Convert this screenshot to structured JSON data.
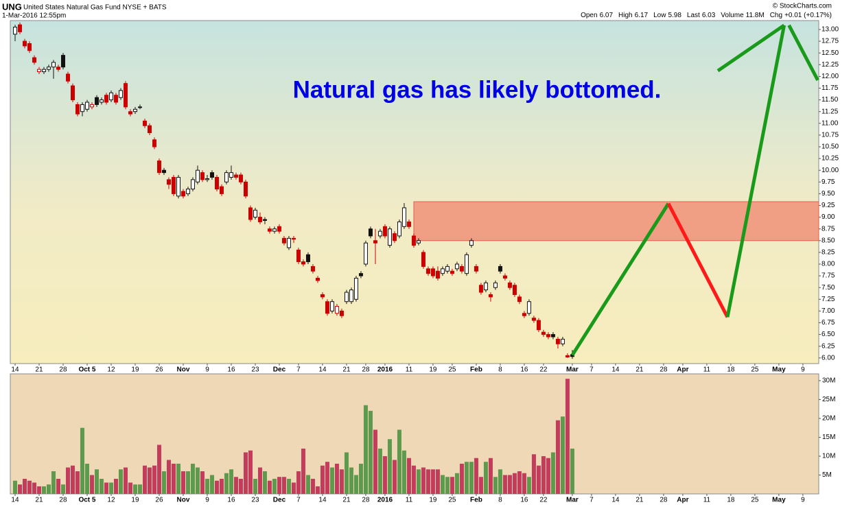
{
  "chart_data": {
    "type": "candlestick",
    "symbol": "UNG",
    "name": "United States Natural Gas Fund NYSE + BATS",
    "timestamp": "1-Mar-2016 12:55pm",
    "source": "© StockCharts.com",
    "quote": [
      {
        "label": "Open",
        "value": "6.07"
      },
      {
        "label": "High",
        "value": "6.17"
      },
      {
        "label": "Low",
        "value": "5.98"
      },
      {
        "label": "Last",
        "value": "6.03"
      },
      {
        "label": "Volume",
        "value": "11.8M"
      },
      {
        "label": "Chg",
        "value": "+0.01 (+0.17%)"
      }
    ],
    "annotation": "Natural gas has likely bottomed.",
    "annotation_color": "#0000e6",
    "up_color": "#111111",
    "down_color": "#cc0000",
    "xlim": [
      -1,
      167.3
    ],
    "xticks": [
      {
        "value": 0,
        "label": "14"
      },
      {
        "value": 5,
        "label": "21"
      },
      {
        "value": 10,
        "label": "28"
      },
      {
        "value": 15,
        "label": "Oct 5"
      },
      {
        "value": 20,
        "label": "12"
      },
      {
        "value": 25,
        "label": "19"
      },
      {
        "value": 30,
        "label": "26"
      },
      {
        "value": 35,
        "label": "Nov"
      },
      {
        "value": 40,
        "label": "9"
      },
      {
        "value": 45,
        "label": "16"
      },
      {
        "value": 50,
        "label": "23"
      },
      {
        "value": 55,
        "label": "Dec"
      },
      {
        "value": 59,
        "label": "7"
      },
      {
        "value": 64,
        "label": "14"
      },
      {
        "value": 69,
        "label": "21"
      },
      {
        "value": 73,
        "label": "28"
      },
      {
        "value": 77,
        "label": "2016"
      },
      {
        "value": 82,
        "label": "11"
      },
      {
        "value": 87,
        "label": "19"
      },
      {
        "value": 91,
        "label": "25"
      },
      {
        "value": 96,
        "label": "Feb"
      },
      {
        "value": 101,
        "label": "8"
      },
      {
        "value": 106,
        "label": "16"
      },
      {
        "value": 110,
        "label": "22"
      },
      {
        "value": 116,
        "label": "Mar"
      },
      {
        "value": 120,
        "label": "7"
      },
      {
        "value": 125,
        "label": "14"
      },
      {
        "value": 130,
        "label": "21"
      },
      {
        "value": 135,
        "label": "28"
      },
      {
        "value": 139,
        "label": "Apr"
      },
      {
        "value": 144,
        "label": "11"
      },
      {
        "value": 149,
        "label": "18"
      },
      {
        "value": 154,
        "label": "25"
      },
      {
        "value": 159,
        "label": "May"
      },
      {
        "value": 164,
        "label": "9"
      }
    ],
    "ylim": [
      5.88,
      13.19
    ],
    "yticks": [
      {
        "value": 6,
        "label": "6.00"
      },
      {
        "value": 6.25,
        "label": "6.25"
      },
      {
        "value": 6.5,
        "label": "6.50"
      },
      {
        "value": 6.75,
        "label": "6.75"
      },
      {
        "value": 7,
        "label": "7.00"
      },
      {
        "value": 7.25,
        "label": "7.25"
      },
      {
        "value": 7.5,
        "label": "7.50"
      },
      {
        "value": 7.75,
        "label": "7.75"
      },
      {
        "value": 8,
        "label": "8.00"
      },
      {
        "value": 8.25,
        "label": "8.25"
      },
      {
        "value": 8.5,
        "label": "8.50"
      },
      {
        "value": 8.75,
        "label": "8.75"
      },
      {
        "value": 9,
        "label": "9.00"
      },
      {
        "value": 9.25,
        "label": "9.25"
      },
      {
        "value": 9.5,
        "label": "9.50"
      },
      {
        "value": 9.75,
        "label": "9.75"
      },
      {
        "value": 10,
        "label": "10.00"
      },
      {
        "value": 10.25,
        "label": "10.25"
      },
      {
        "value": 10.5,
        "label": "10.50"
      },
      {
        "value": 10.75,
        "label": "10.75"
      },
      {
        "value": 11,
        "label": "11.00"
      },
      {
        "value": 11.25,
        "label": "11.25"
      },
      {
        "value": 11.5,
        "label": "11.50"
      },
      {
        "value": 11.75,
        "label": "11.75"
      },
      {
        "value": 12,
        "label": "12.00"
      },
      {
        "value": 12.25,
        "label": "12.25"
      },
      {
        "value": 12.5,
        "label": "12.50"
      },
      {
        "value": 12.75,
        "label": "12.75"
      },
      {
        "value": 13,
        "label": "13.00"
      }
    ],
    "open": [
      12.9,
      13.1,
      12.75,
      12.7,
      12.4,
      12.1,
      12.1,
      12.15,
      12.2,
      12.2,
      12.45,
      12.05,
      11.8,
      11.4,
      11.25,
      11.3,
      11.35,
      11.55,
      11.45,
      11.6,
      11.5,
      11.6,
      11.55,
      11.85,
      11.25,
      11.25,
      11.35,
      11.05,
      10.95,
      10.65,
      10.2,
      10.0,
      9.8,
      9.85,
      9.45,
      9.55,
      9.5,
      9.6,
      9.75,
      9.95,
      9.8,
      9.95,
      9.85,
      9.65,
      9.75,
      9.85,
      9.9,
      9.9,
      9.75,
      9.2,
      9.0,
      9.0,
      8.95,
      8.75,
      8.7,
      8.8,
      8.55,
      8.35,
      8.55,
      8.3,
      8.05,
      8.2,
      7.95,
      7.7,
      7.35,
      7.2,
      7.0,
      6.95,
      7.0,
      7.2,
      7.2,
      7.25,
      7.8,
      8.0,
      8.75,
      8.5,
      8.6,
      8.8,
      8.4,
      8.65,
      8.6,
      8.8,
      8.9,
      8.6,
      8.45,
      8.25,
      7.9,
      7.9,
      7.85,
      7.8,
      7.85,
      7.85,
      7.9,
      7.95,
      7.8,
      8.4,
      7.95,
      7.55,
      7.45,
      7.35,
      7.5,
      7.95,
      7.75,
      7.6,
      7.55,
      7.3,
      6.95,
      6.95,
      6.85,
      6.8,
      6.55,
      6.5,
      6.5,
      6.4,
      6.3,
      6.05,
      6.07
    ],
    "high": [
      13.1,
      13.15,
      12.8,
      12.75,
      12.45,
      12.2,
      12.2,
      12.25,
      12.35,
      12.25,
      12.5,
      12.1,
      11.85,
      11.45,
      11.45,
      11.5,
      11.45,
      11.6,
      11.55,
      11.65,
      11.7,
      11.65,
      11.75,
      11.9,
      11.3,
      11.35,
      11.4,
      11.1,
      11.0,
      10.7,
      10.25,
      10.05,
      9.85,
      9.9,
      9.9,
      9.6,
      9.65,
      9.85,
      10.1,
      10.0,
      9.9,
      10.0,
      9.9,
      9.7,
      10.0,
      10.1,
      9.95,
      9.95,
      9.8,
      9.25,
      9.2,
      9.1,
      9.0,
      8.8,
      8.8,
      8.85,
      8.6,
      8.6,
      8.6,
      8.35,
      8.1,
      8.25,
      8.0,
      7.75,
      7.4,
      7.25,
      7.25,
      7.15,
      7.05,
      7.45,
      7.5,
      7.75,
      7.85,
      8.5,
      8.8,
      8.75,
      8.75,
      8.85,
      8.8,
      8.7,
      8.95,
      9.3,
      8.95,
      8.65,
      8.55,
      8.3,
      7.95,
      7.95,
      7.95,
      7.95,
      8.0,
      7.9,
      8.05,
      8.0,
      8.25,
      8.55,
      8.0,
      7.6,
      7.65,
      7.4,
      7.65,
      8.0,
      7.8,
      7.65,
      7.6,
      7.35,
      7.0,
      7.25,
      6.9,
      6.85,
      6.6,
      6.55,
      6.55,
      6.45,
      6.45,
      6.1,
      6.17
    ],
    "low": [
      12.75,
      12.9,
      12.6,
      12.5,
      12.25,
      12.05,
      12.05,
      12.1,
      11.95,
      12.1,
      12.15,
      11.85,
      11.45,
      11.15,
      11.15,
      11.25,
      11.3,
      11.35,
      11.4,
      11.4,
      11.45,
      11.4,
      11.5,
      11.3,
      11.15,
      11.2,
      11.3,
      10.9,
      10.75,
      10.45,
      9.9,
      9.9,
      9.6,
      9.45,
      9.4,
      9.4,
      9.45,
      9.55,
      9.7,
      9.75,
      9.75,
      9.8,
      9.55,
      9.45,
      9.7,
      9.8,
      9.8,
      9.7,
      9.4,
      8.9,
      8.95,
      8.85,
      8.85,
      8.65,
      8.65,
      8.65,
      8.4,
      8.3,
      8.45,
      8.0,
      7.95,
      8.0,
      7.8,
      7.6,
      7.25,
      6.9,
      6.95,
      6.9,
      6.85,
      7.15,
      7.15,
      7.2,
      7.7,
      7.95,
      8.55,
      8.0,
      8.55,
      8.55,
      8.35,
      8.45,
      8.55,
      8.75,
      8.75,
      8.35,
      8.4,
      7.9,
      7.75,
      7.7,
      7.65,
      7.75,
      7.8,
      7.75,
      7.85,
      7.8,
      7.75,
      8.35,
      7.8,
      7.35,
      7.4,
      7.2,
      7.45,
      7.8,
      7.65,
      7.45,
      7.3,
      7.15,
      6.85,
      6.9,
      6.75,
      6.55,
      6.45,
      6.4,
      6.4,
      6.2,
      6.25,
      6.0,
      5.98
    ],
    "close": [
      13.05,
      12.95,
      12.65,
      12.55,
      12.3,
      12.15,
      12.15,
      12.2,
      12.3,
      12.15,
      12.2,
      11.9,
      11.5,
      11.2,
      11.4,
      11.45,
      11.4,
      11.4,
      11.5,
      11.45,
      11.65,
      11.45,
      11.7,
      11.35,
      11.2,
      11.3,
      11.35,
      10.95,
      10.8,
      10.5,
      9.95,
      9.95,
      9.7,
      9.5,
      9.85,
      9.45,
      9.6,
      9.8,
      10.0,
      9.8,
      9.82,
      9.85,
      9.6,
      9.5,
      9.95,
      9.95,
      9.85,
      9.75,
      9.45,
      8.95,
      9.15,
      8.9,
      8.93,
      8.7,
      8.75,
      8.7,
      8.45,
      8.55,
      8.53,
      8.05,
      8.0,
      8.05,
      7.85,
      7.65,
      7.3,
      6.95,
      7.2,
      7.1,
      6.9,
      7.4,
      7.45,
      7.7,
      7.75,
      8.45,
      8.6,
      8.45,
      8.7,
      8.6,
      8.75,
      8.5,
      8.9,
      9.2,
      8.8,
      8.4,
      8.5,
      7.95,
      7.8,
      7.75,
      7.7,
      7.9,
      7.95,
      7.8,
      8.0,
      7.85,
      8.2,
      8.5,
      7.85,
      7.4,
      7.6,
      7.3,
      7.6,
      7.85,
      7.7,
      7.5,
      7.35,
      7.2,
      6.9,
      7.2,
      6.8,
      6.6,
      6.5,
      6.45,
      6.45,
      6.3,
      6.4,
      6.02,
      6.03
    ],
    "zone": {
      "x0": 83,
      "y0": 8.5,
      "y1": 9.33,
      "color": "#f0967c"
    },
    "projections": [
      {
        "color": "#1a9a1a",
        "x": [
          116,
          136
        ],
        "y": [
          6.06,
          9.29
        ]
      },
      {
        "color": "#ff1a1a",
        "x": [
          136,
          148.3
        ],
        "y": [
          9.29,
          6.87
        ]
      },
      {
        "color": "#1a9a1a",
        "x": [
          148.3,
          160.1
        ],
        "y": [
          6.87,
          13.09
        ]
      },
      {
        "color": "#1a9a1a",
        "x": [
          146.3,
          160.1
        ],
        "y": [
          12.12,
          13.09
        ]
      },
      {
        "color": "#1a9a1a",
        "x": [
          161.1,
          167.1
        ],
        "y": [
          13.09,
          11.92
        ]
      }
    ],
    "volume": {
      "up_color": "#5e9a4e",
      "down_color": "#c43c5c",
      "ylim": [
        0,
        31.8
      ],
      "yticks": [
        {
          "value": 5,
          "label": "5M"
        },
        {
          "value": 10,
          "label": "10M"
        },
        {
          "value": 15,
          "label": "15M"
        },
        {
          "value": 20,
          "label": "20M"
        },
        {
          "value": 25,
          "label": "25M"
        },
        {
          "value": 30,
          "label": "30M"
        }
      ],
      "values": [
        3.5,
        2.5,
        4,
        3.5,
        3,
        2,
        2,
        2.5,
        6,
        4,
        2.5,
        7,
        7.5,
        6,
        17.5,
        8,
        5,
        6.5,
        4,
        3,
        3,
        4,
        6.5,
        7,
        3,
        2.5,
        2.5,
        7.5,
        7,
        7.5,
        13,
        6,
        9,
        8,
        8,
        6,
        6,
        8,
        7,
        6,
        4,
        5,
        3.5,
        4,
        5.5,
        6.5,
        4.5,
        4,
        11,
        11.5,
        4,
        7,
        6,
        3.5,
        4,
        4.5,
        4.5,
        4,
        3,
        6,
        12,
        5,
        4,
        2,
        7.5,
        8.5,
        7,
        8,
        6.5,
        11,
        7,
        5,
        8,
        23.5,
        22,
        17,
        12,
        10,
        14.5,
        9,
        17,
        11.5,
        9.5,
        7.5,
        6.5,
        7,
        6.5,
        6.5,
        6.5,
        5,
        4.5,
        4.5,
        5.5,
        8,
        8.5,
        8.5,
        9.5,
        4.5,
        8.5,
        9.5,
        4.5,
        6.5,
        5,
        5,
        5.5,
        6,
        5.5,
        4.5,
        10.5,
        7.5,
        10,
        9.5,
        11,
        19.5,
        20.5,
        30.5,
        12
      ]
    }
  }
}
